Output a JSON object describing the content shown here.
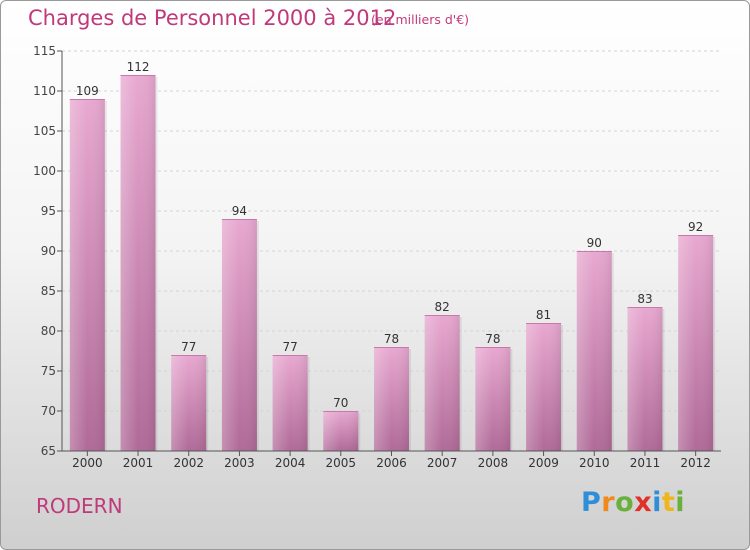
{
  "title": "Charges de Personnel 2000 à 2012",
  "subtitle": "(en milliers d'€)",
  "commune": "RODERN",
  "logo": {
    "letters": [
      "P",
      "r",
      "o",
      "x",
      "i",
      "t",
      "i"
    ],
    "colors": [
      "#2e8fd8",
      "#f08a1c",
      "#6ab03c",
      "#e0302a",
      "#2e8fd8",
      "#f0b41c",
      "#6ab03c"
    ]
  },
  "colors": {
    "bar_top": "#e8a8d0",
    "bar_bottom": "#b06a98",
    "text": "#c0397a"
  },
  "chart_data": {
    "type": "bar",
    "categories": [
      "2000",
      "2001",
      "2002",
      "2003",
      "2004",
      "2005",
      "2006",
      "2007",
      "2008",
      "2009",
      "2010",
      "2011",
      "2012"
    ],
    "values": [
      109,
      112,
      77,
      94,
      77,
      70,
      78,
      82,
      78,
      81,
      90,
      83,
      92
    ],
    "data_labels": [
      "109",
      "112",
      "77",
      "94",
      "77",
      "70",
      "78",
      "82",
      "78",
      "81",
      "90",
      "83",
      "92"
    ],
    "yticks": [
      "65",
      "70",
      "75",
      "80",
      "85",
      "90",
      "95",
      "100",
      "105",
      "110",
      "115"
    ],
    "ylim": [
      65,
      115
    ],
    "grid": true
  }
}
